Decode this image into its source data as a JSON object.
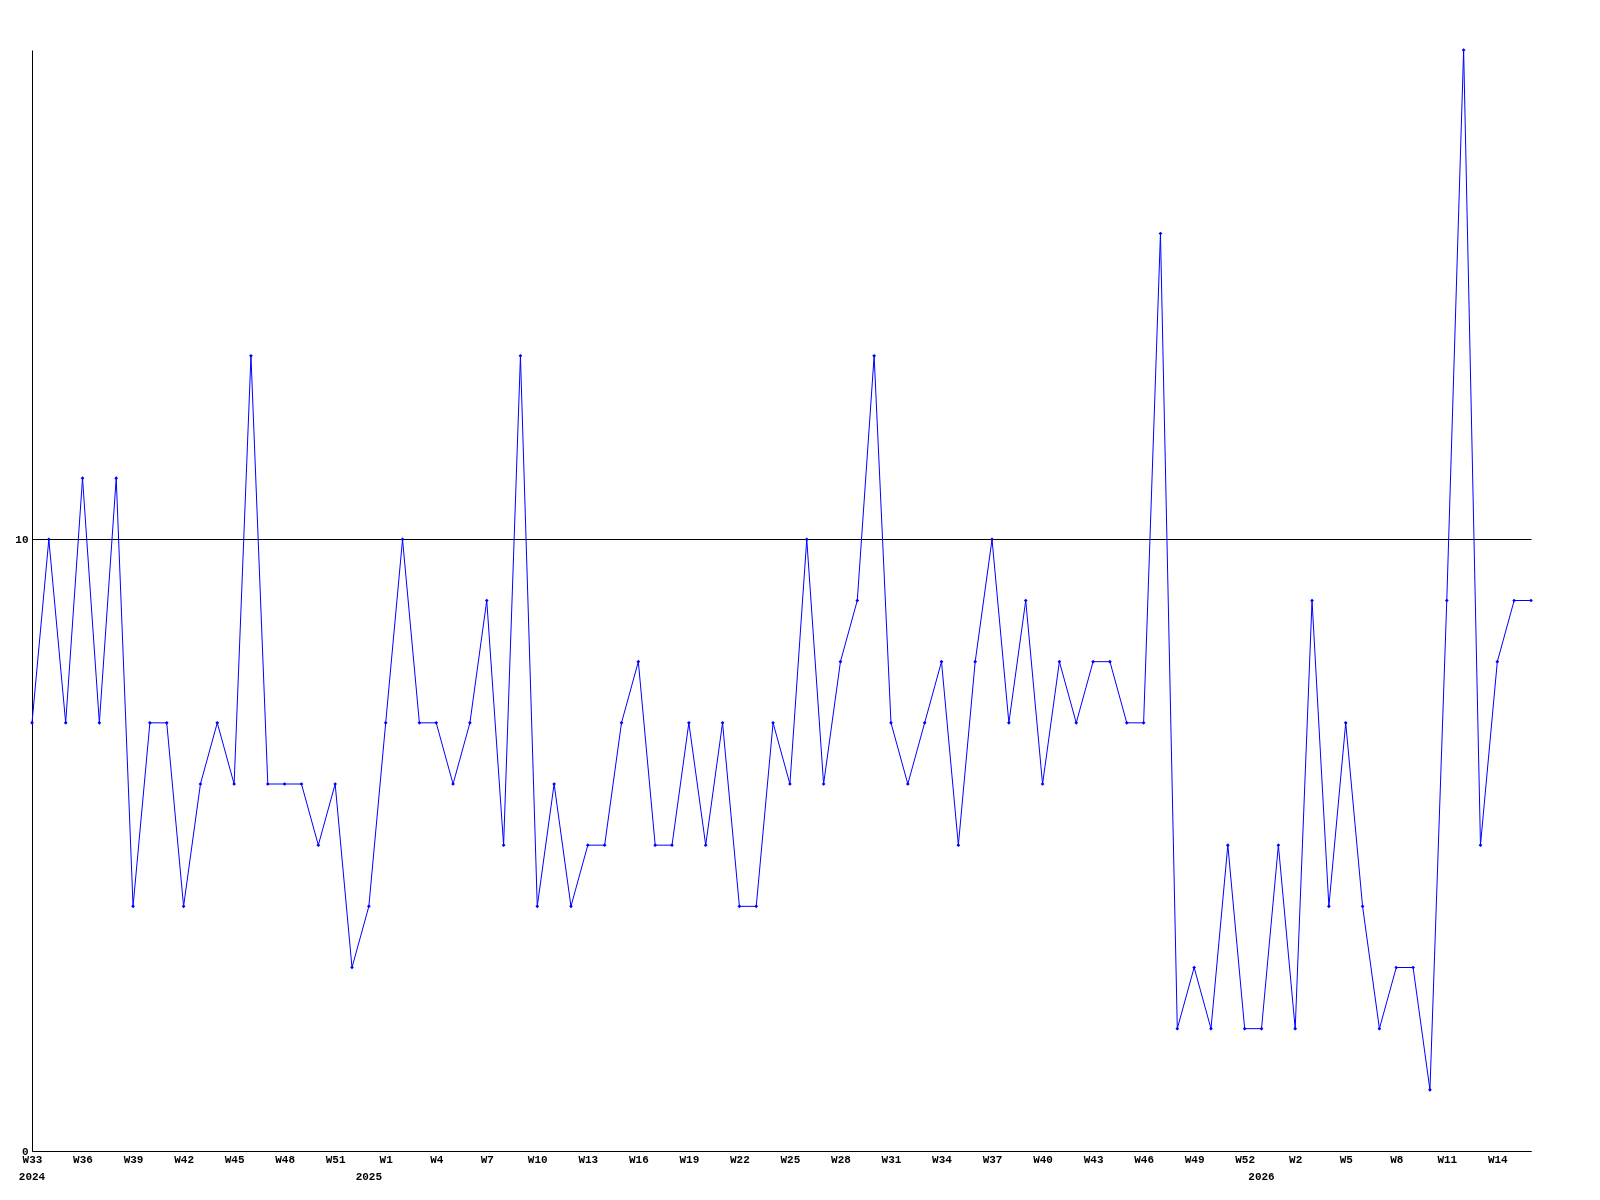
{
  "chart_data": {
    "type": "line",
    "categories": [
      "W33",
      null,
      null,
      "W36",
      null,
      null,
      "W39",
      null,
      null,
      "W42",
      null,
      null,
      "W45",
      null,
      null,
      "W48",
      null,
      null,
      "W51",
      null,
      null,
      "W1",
      null,
      null,
      "W4",
      null,
      null,
      "W7",
      null,
      null,
      "W10",
      null,
      null,
      "W13",
      null,
      null,
      "W16",
      null,
      null,
      "W19",
      null,
      null,
      "W22",
      null,
      null,
      "W25",
      null,
      null,
      "W28",
      null,
      null,
      "W31",
      null,
      null,
      "W34",
      null,
      null,
      "W37",
      null,
      null,
      "W40",
      null,
      null,
      "W43",
      null,
      null,
      "W46",
      null,
      null,
      "W49",
      null,
      null,
      "W52",
      null,
      null,
      "W2",
      null,
      null,
      "W5",
      null,
      null,
      "W8",
      null,
      null,
      "W11",
      null,
      null,
      "W14",
      null,
      null
    ],
    "series": [
      {
        "color": "#0000ff",
        "values": [
          7,
          10,
          7,
          11,
          7,
          11,
          4,
          7,
          7,
          4,
          6,
          7,
          6,
          13,
          6,
          6,
          6,
          5,
          6,
          3,
          4,
          7,
          10,
          7,
          7,
          6,
          7,
          9,
          5,
          13,
          4,
          6,
          4,
          5,
          5,
          7,
          8,
          5,
          5,
          7,
          5,
          7,
          4,
          4,
          7,
          6,
          10,
          6,
          8,
          9,
          13,
          7,
          6,
          7,
          8,
          5,
          8,
          10,
          7,
          9,
          6,
          8,
          7,
          8,
          8,
          7,
          7,
          15,
          2,
          3,
          2,
          5,
          2,
          2,
          5,
          2,
          9,
          4,
          7,
          4,
          2,
          3,
          3,
          1,
          9,
          18,
          5,
          8,
          9,
          9
        ]
      }
    ],
    "ylim": [
      0,
      18
    ],
    "yticks": [
      0,
      10
    ],
    "grid": "y",
    "marker": "diamond",
    "line_style": "solid",
    "annotations": [
      "2024",
      "2025",
      "2026"
    ]
  }
}
